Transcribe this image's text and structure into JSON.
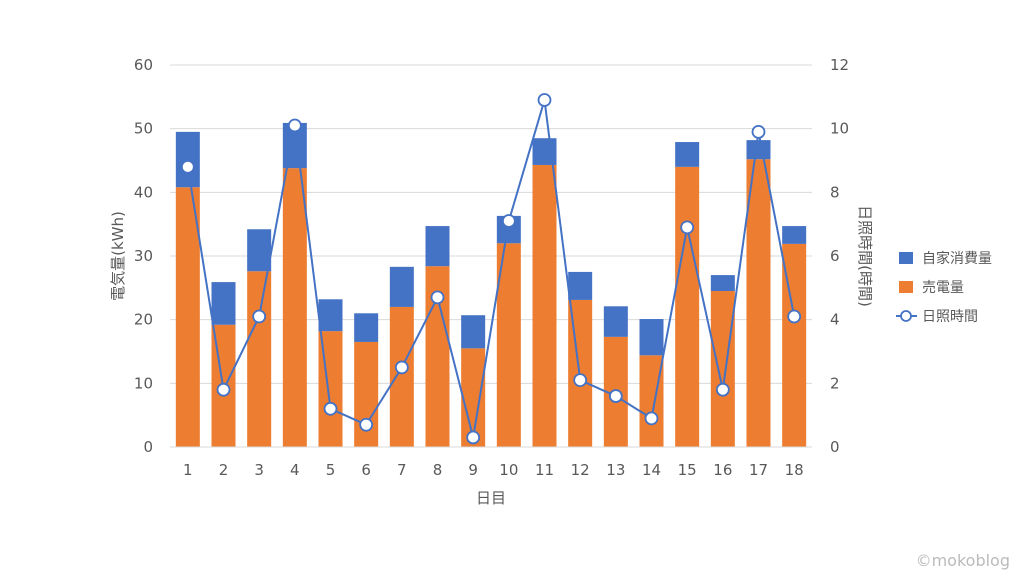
{
  "chart_data": {
    "type": "bar",
    "categories": [
      "1",
      "2",
      "3",
      "4",
      "5",
      "6",
      "7",
      "8",
      "9",
      "10",
      "11",
      "12",
      "13",
      "14",
      "15",
      "16",
      "17",
      "18"
    ],
    "xlabel": "日目",
    "ylabel": "電気量(kWh)",
    "y2label": "日照時間(時間)",
    "ylim": [
      0,
      60
    ],
    "y2lim": [
      0,
      12
    ],
    "yticks": [
      0,
      10,
      20,
      30,
      40,
      50,
      60
    ],
    "y2ticks": [
      0,
      2,
      4,
      6,
      8,
      10,
      12
    ],
    "grid": true,
    "legend_position": "right",
    "stacked": true,
    "series": [
      {
        "name": "売電量",
        "type": "bar",
        "axis": "left",
        "color": "#ED7D31",
        "values": [
          40.8,
          19.2,
          27.6,
          43.8,
          18.2,
          16.5,
          22.0,
          28.4,
          15.5,
          32.0,
          44.3,
          23.1,
          17.3,
          14.4,
          44.0,
          24.5,
          45.2,
          31.9
        ]
      },
      {
        "name": "自家消費量",
        "type": "bar",
        "axis": "left",
        "color": "#4472C4",
        "values": [
          8.7,
          6.7,
          6.6,
          7.1,
          5.0,
          4.5,
          6.3,
          6.3,
          5.2,
          4.3,
          4.2,
          4.4,
          4.8,
          5.7,
          3.9,
          2.5,
          3.0,
          2.8
        ]
      },
      {
        "name": "日照時間",
        "type": "line",
        "axis": "right",
        "color": "#4472C4",
        "values": [
          8.8,
          1.8,
          4.1,
          10.1,
          1.2,
          0.7,
          2.5,
          4.7,
          0.3,
          7.1,
          10.9,
          2.1,
          1.6,
          0.9,
          6.9,
          1.8,
          9.9,
          4.1
        ]
      }
    ]
  },
  "watermark": "©mokoblog"
}
